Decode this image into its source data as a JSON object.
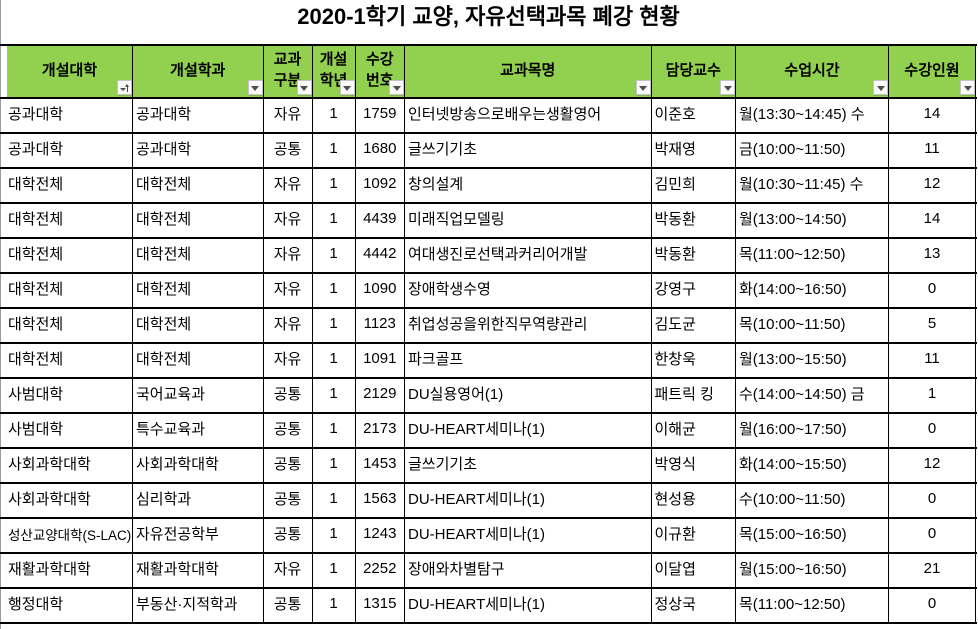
{
  "title": "2020-1학기 교양, 자유선택과목 폐강 현황",
  "table": {
    "columns": [
      {
        "id": "college",
        "label": "개설대학",
        "label_lines": [
          "개설대학"
        ],
        "align": "left",
        "filter_icon": "filter-sort-ascending-icon"
      },
      {
        "id": "department",
        "label": "개설학과",
        "label_lines": [
          "개설학과"
        ],
        "align": "left",
        "filter_icon": "filter-dropdown-icon"
      },
      {
        "id": "course-type",
        "label": "교과구분",
        "label_lines": [
          "교과",
          "구분"
        ],
        "align": "center",
        "filter_icon": "filter-dropdown-icon"
      },
      {
        "id": "year",
        "label": "개설학년",
        "label_lines": [
          "개설",
          "학년"
        ],
        "align": "center",
        "filter_icon": "filter-dropdown-icon"
      },
      {
        "id": "course-no",
        "label": "수강번호",
        "label_lines": [
          "수강",
          "번호"
        ],
        "align": "center",
        "filter_icon": "filter-dropdown-icon"
      },
      {
        "id": "course-name",
        "label": "교과목명",
        "label_lines": [
          "교과목명"
        ],
        "align": "left",
        "filter_icon": "filter-dropdown-icon"
      },
      {
        "id": "professor",
        "label": "담당교수",
        "label_lines": [
          "담당교수"
        ],
        "align": "left",
        "filter_icon": "filter-dropdown-icon"
      },
      {
        "id": "class-time",
        "label": "수업시간",
        "label_lines": [
          "수업시간"
        ],
        "align": "left",
        "filter_icon": "filter-dropdown-icon"
      },
      {
        "id": "enrollment",
        "label": "수강인원",
        "label_lines": [
          "수강인원"
        ],
        "align": "center",
        "filter_icon": "filter-dropdown-icon"
      }
    ],
    "rows": [
      [
        "공과대학",
        "공과대학",
        "자유",
        "1",
        "1759",
        "인터넷방송으로배우는생활영어",
        "이준호",
        "월(13:30~14:45) 수",
        "14"
      ],
      [
        "공과대학",
        "공과대학",
        "공통",
        "1",
        "1680",
        "글쓰기기초",
        "박재영",
        "금(10:00~11:50)",
        "11"
      ],
      [
        "대학전체",
        "대학전체",
        "자유",
        "1",
        "1092",
        "창의설계",
        "김민희",
        "월(10:30~11:45) 수",
        "12"
      ],
      [
        "대학전체",
        "대학전체",
        "자유",
        "1",
        "4439",
        "미래직업모델링",
        "박동환",
        "월(13:00~14:50)",
        "14"
      ],
      [
        "대학전체",
        "대학전체",
        "자유",
        "1",
        "4442",
        "여대생진로선택과커리어개발",
        "박동환",
        "목(11:00~12:50)",
        "13"
      ],
      [
        "대학전체",
        "대학전체",
        "자유",
        "1",
        "1090",
        "장애학생수영",
        "강영구",
        "화(14:00~16:50)",
        "0"
      ],
      [
        "대학전체",
        "대학전체",
        "자유",
        "1",
        "1123",
        "취업성공을위한직무역량관리",
        "김도균",
        "목(10:00~11:50)",
        "5"
      ],
      [
        "대학전체",
        "대학전체",
        "자유",
        "1",
        "1091",
        "파크골프",
        "한창욱",
        "월(13:00~15:50)",
        "11"
      ],
      [
        "사범대학",
        "국어교육과",
        "공통",
        "1",
        "2129",
        "DU실용영어(1)",
        "패트릭 킹",
        "수(14:00~14:50) 금",
        "1"
      ],
      [
        "사범대학",
        "특수교육과",
        "공통",
        "1",
        "2173",
        "DU-HEART세미나(1)",
        "이해균",
        "월(16:00~17:50)",
        "0"
      ],
      [
        "사회과학대학",
        "사회과학대학",
        "공통",
        "1",
        "1453",
        "글쓰기기초",
        "박영식",
        "화(14:00~15:50)",
        "12"
      ],
      [
        "사회과학대학",
        "심리학과",
        "공통",
        "1",
        "1563",
        "DU-HEART세미나(1)",
        "현성용",
        "수(10:00~11:50)",
        "0"
      ],
      [
        "성산교양대학(S-LAC)",
        "자유전공학부",
        "공통",
        "1",
        "1243",
        "DU-HEART세미나(1)",
        "이규환",
        "목(15:00~16:50)",
        "0"
      ],
      [
        "재활과학대학",
        "재활과학대학",
        "자유",
        "1",
        "2252",
        "장애와차별탐구",
        "이달엽",
        "월(15:00~16:50)",
        "21"
      ],
      [
        "행정대학",
        "부동산·지적학과",
        "공통",
        "1",
        "1315",
        "DU-HEART세미나(1)",
        "정상국",
        "목(11:00~12:50)",
        "0"
      ]
    ]
  },
  "colors": {
    "header_fill": "#92d050",
    "grid_border": "#000000",
    "text": "#000000",
    "sheet_gridline": "#9b9b9b",
    "filter_button_fill": "#fafafa",
    "filter_button_border": "#c3c3c3",
    "filter_arrow": "#4d4d4d"
  }
}
